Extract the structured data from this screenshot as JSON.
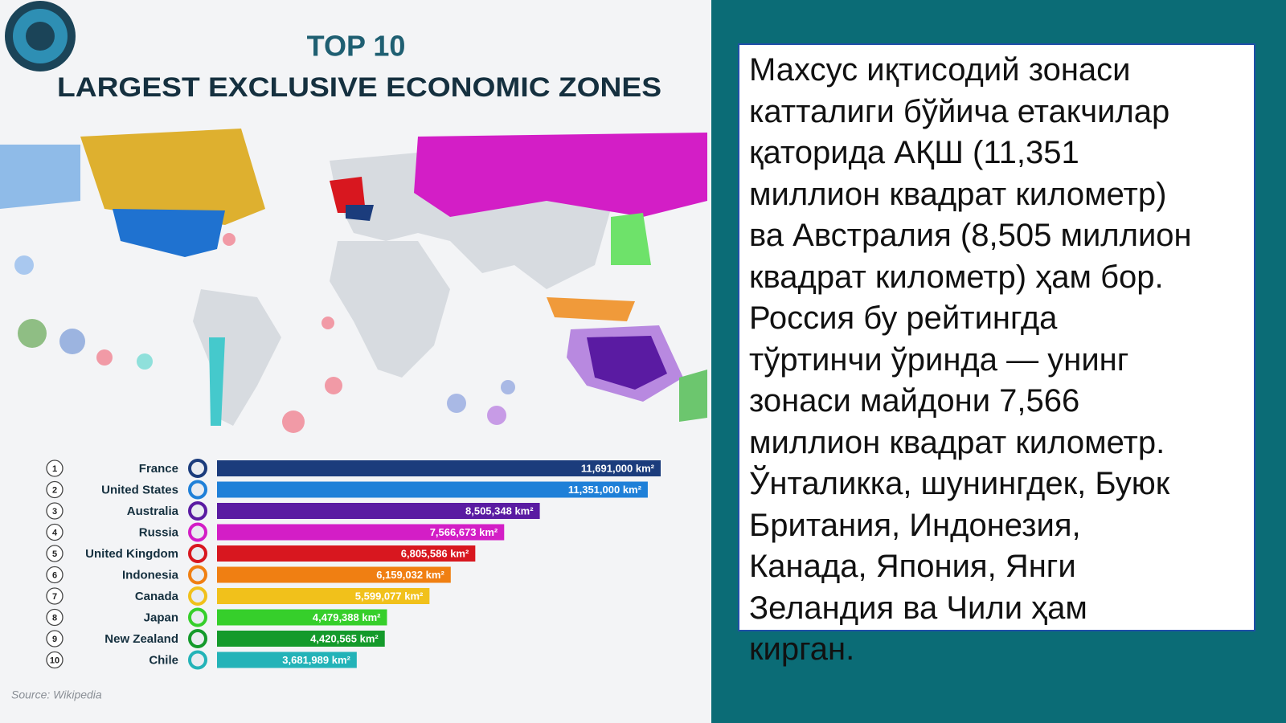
{
  "chart_data": {
    "type": "bar",
    "orientation": "horizontal",
    "title": "TOP 10",
    "subtitle": "LARGEST EXCLUSIVE ECONOMIC ZONES",
    "ranks": [
      "1",
      "2",
      "3",
      "4",
      "5",
      "6",
      "7",
      "8",
      "9",
      "10"
    ],
    "categories": [
      "France",
      "United States",
      "Australia",
      "Russia",
      "United Kingdom",
      "Indonesia",
      "Canada",
      "Japan",
      "New Zealand",
      "Chile"
    ],
    "values": [
      11691000,
      11351000,
      8505348,
      7566673,
      6805586,
      6159032,
      5599077,
      4479388,
      4420565,
      3681989
    ],
    "value_labels": [
      "11,691,000 km²",
      "11,351,000 km²",
      "8,505,348 km²",
      "7,566,673 km²",
      "6,805,586 km²",
      "6,159,032 km²",
      "5,599,077 km²",
      "4,479,388 km²",
      "4,420,565 km²",
      "3,681,989 km²"
    ],
    "colors": [
      "#1b3c7c",
      "#1f80d8",
      "#5a1ba2",
      "#d31ec6",
      "#d8171f",
      "#f07f12",
      "#f1c11b",
      "#36cf2b",
      "#149a2b",
      "#23b3b8"
    ],
    "source": "Source: Wikipedia"
  },
  "text_panel": {
    "lines": [
      "Махсус иқтисодий зонаси",
      "катталиги бўйича етакчилар",
      "қаторида АҚШ (11,351",
      "миллион квадрат километр)",
      "ва Австралия (8,505 миллион",
      "квадрат километр) ҳам бор.",
      "Россия бу рейтингда",
      "тўртинчи ўринда — унинг",
      "зонаси майдони 7,566",
      "миллион квадрат километр.",
      "Ўнталикка, шунингдек, Буюк",
      "Британия, Индонезия,",
      "Канада, Япония, Янги",
      "Зеландия ва Чили ҳам",
      "кирган."
    ]
  }
}
